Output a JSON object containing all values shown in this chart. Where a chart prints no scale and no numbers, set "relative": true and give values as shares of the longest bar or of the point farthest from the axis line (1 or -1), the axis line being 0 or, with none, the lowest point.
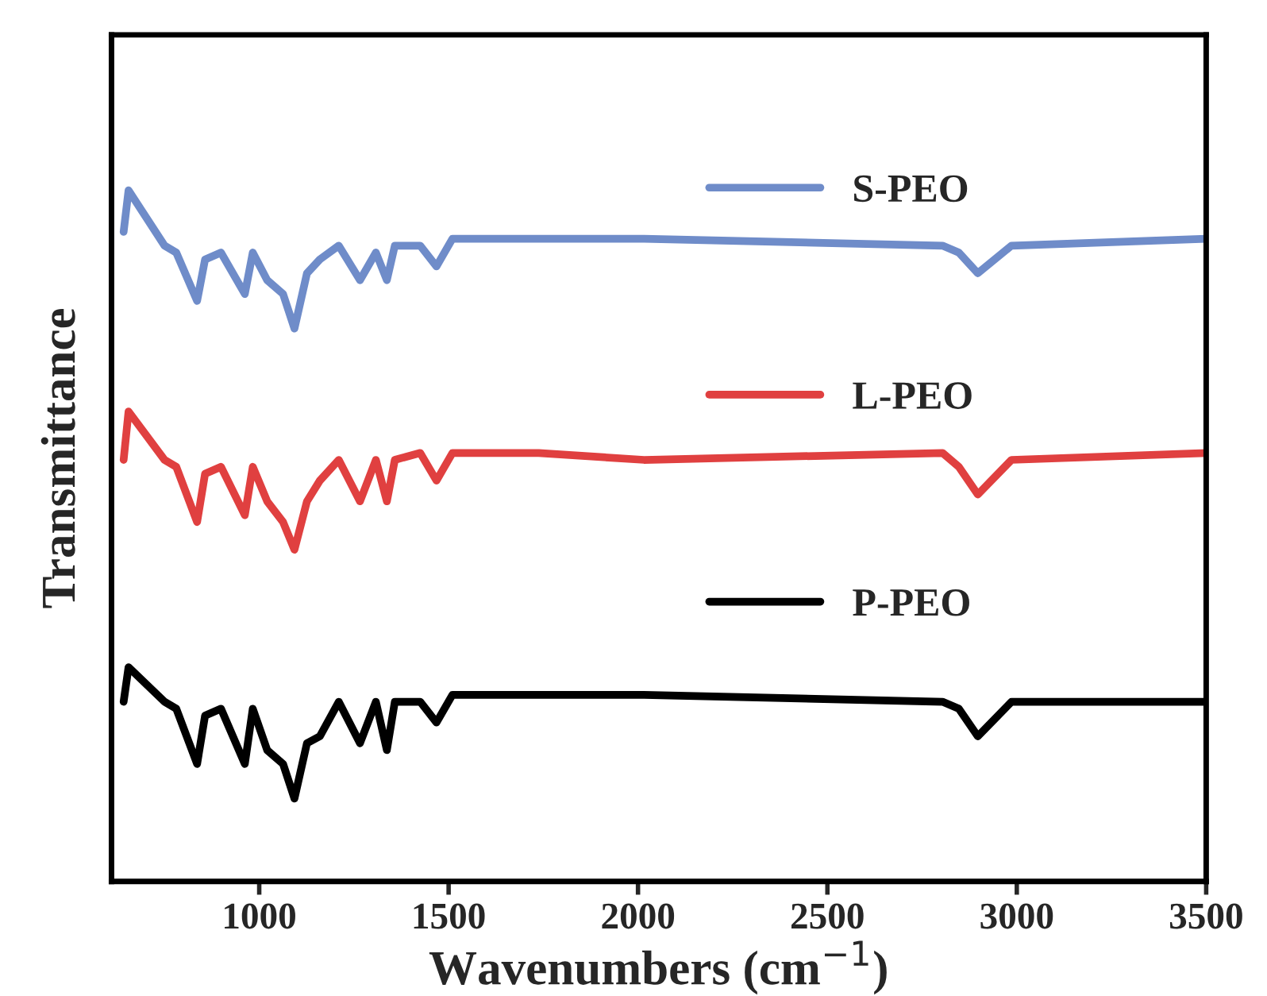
{
  "chart_data": {
    "type": "line",
    "relative": true,
    "xlabel": "Wavenumbers (cm$^{−1}$)",
    "ylabel": "Transmittance",
    "x": [
      642,
      655,
      750,
      781,
      836,
      857,
      899,
      962,
      983,
      1021,
      1063,
      1093,
      1126,
      1160,
      1210,
      1266,
      1308,
      1337,
      1358,
      1425,
      1468,
      1510,
      1738,
      2016,
      2804,
      2847,
      2897,
      2986,
      3500
    ],
    "xlim": [
      610,
      3500
    ],
    "xticks": [
      1000,
      1500,
      2000,
      2500,
      3000,
      3500
    ],
    "tick_labels": "x",
    "grid": false,
    "legend": "right",
    "line_style": "solid",
    "marker": "none",
    "series": [
      {
        "name": "S-PEO",
        "color": "#6f8cc9",
        "values": [
          0.94,
          1.0,
          0.92,
          0.91,
          0.84,
          0.9,
          0.91,
          0.85,
          0.91,
          0.87,
          0.85,
          0.8,
          0.88,
          0.9,
          0.92,
          0.87,
          0.91,
          0.87,
          0.92,
          0.92,
          0.89,
          0.93,
          0.93,
          0.93,
          0.92,
          0.91,
          0.88,
          0.92,
          0.93
        ]
      },
      {
        "name": "L-PEO",
        "color": "#e04040",
        "values": [
          0.61,
          0.68,
          0.61,
          0.6,
          0.52,
          0.59,
          0.6,
          0.53,
          0.6,
          0.55,
          0.52,
          0.48,
          0.55,
          0.58,
          0.61,
          0.55,
          0.61,
          0.55,
          0.61,
          0.62,
          0.58,
          0.62,
          0.62,
          0.61,
          0.62,
          0.6,
          0.56,
          0.61,
          0.62
        ]
      },
      {
        "name": "P-PEO",
        "color": "#000000",
        "values": [
          0.26,
          0.31,
          0.26,
          0.25,
          0.17,
          0.24,
          0.25,
          0.17,
          0.25,
          0.19,
          0.17,
          0.12,
          0.2,
          0.21,
          0.26,
          0.2,
          0.26,
          0.19,
          0.26,
          0.26,
          0.23,
          0.27,
          0.27,
          0.27,
          0.26,
          0.25,
          0.21,
          0.26,
          0.26
        ]
      }
    ]
  }
}
